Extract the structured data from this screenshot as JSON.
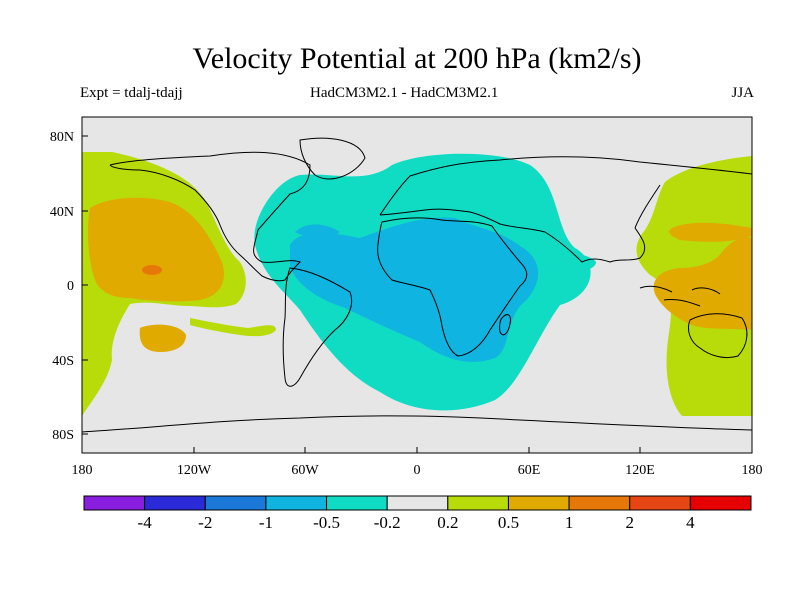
{
  "header": {
    "title": "Velocity Potential at 200 hPa (km2/s)",
    "left_label": "Expt = tdalj-tdajj",
    "center_label": "HadCM3M2.1 - HadCM3M2.1",
    "right_label": "JJA"
  },
  "chart_data": {
    "type": "heatmap",
    "title": "Velocity Potential at 200 hPa (km2/s)",
    "variable": "Velocity potential difference at 200 hPa",
    "units": "km2/s",
    "season": "JJA",
    "experiment": "tdalj-tdajj",
    "models": "HadCM3M2.1 - HadCM3M2.1",
    "lon_range": [
      -180,
      180
    ],
    "lat_range": [
      -90,
      90
    ],
    "x_ticks": [
      {
        "value": -180,
        "label": "180"
      },
      {
        "value": -120,
        "label": "120W"
      },
      {
        "value": -60,
        "label": "60W"
      },
      {
        "value": 0,
        "label": "0"
      },
      {
        "value": 60,
        "label": "60E"
      },
      {
        "value": 120,
        "label": "120E"
      },
      {
        "value": 180,
        "label": "180"
      }
    ],
    "y_ticks": [
      {
        "value": 80,
        "label": "80N"
      },
      {
        "value": 40,
        "label": "40N"
      },
      {
        "value": 0,
        "label": "0"
      },
      {
        "value": -40,
        "label": "40S"
      },
      {
        "value": -80,
        "label": "80S"
      }
    ],
    "colorbar": {
      "levels": [
        -4,
        -2,
        -1,
        -0.5,
        -0.2,
        0.2,
        0.5,
        1,
        2,
        4
      ],
      "level_labels": [
        "-4",
        "-2",
        "-1",
        "-0.5",
        "-0.2",
        "0.2",
        "0.5",
        "1",
        "2",
        "4"
      ],
      "colors": [
        "#8a1ee0",
        "#2a2ad8",
        "#1a78d8",
        "#10b4e0",
        "#10dcc4",
        "#e6e6e6",
        "#b8dc0a",
        "#e0aa00",
        "#e6780a",
        "#e64614",
        "#e60000"
      ]
    },
    "regions": [
      {
        "name": "Atlantic-Africa negative center",
        "lon_center": -5,
        "lat_center": 0,
        "range": "-1 to -0.5"
      },
      {
        "name": "Surrounding negative envelope",
        "lon_center": 0,
        "lat_center": 5,
        "range": "-0.5 to -0.2"
      },
      {
        "name": "East Pacific positive lobe",
        "lon_center": -150,
        "lat_center": 15,
        "range": "0.2 to 0.5"
      },
      {
        "name": "East Pacific positive core",
        "lon_center": -150,
        "lat_center": 20,
        "range": "0.5 to 1"
      },
      {
        "name": "East Pacific maximum",
        "lon_center": -150,
        "lat_center": 7,
        "range": "1 to 2"
      },
      {
        "name": "West Pacific positive lobe",
        "lon_center": 160,
        "lat_center": 10,
        "range": "0.2 to 0.5"
      },
      {
        "name": "West Pacific positive core",
        "lon_center": 155,
        "lat_center": 10,
        "range": "0.5 to 1"
      }
    ]
  }
}
